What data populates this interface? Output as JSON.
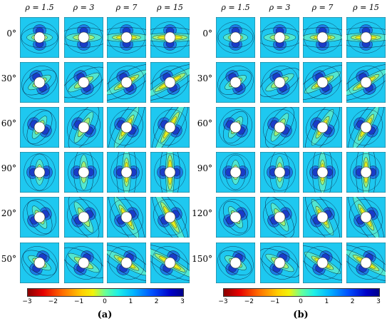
{
  "panels": [
    {
      "caption": "(a)"
    },
    {
      "caption": "(b)"
    }
  ],
  "columns": [
    "ρ = 1.5",
    "ρ = 3",
    "ρ = 7",
    "ρ = 15"
  ],
  "rows": [
    "0°",
    "30°",
    "60°",
    "90°",
    "120°",
    "150°"
  ],
  "colorbar": {
    "ticks": [
      "−3",
      "−2",
      "−1",
      "0",
      "1",
      "2",
      "3"
    ],
    "range": [
      -3,
      3
    ]
  }
}
